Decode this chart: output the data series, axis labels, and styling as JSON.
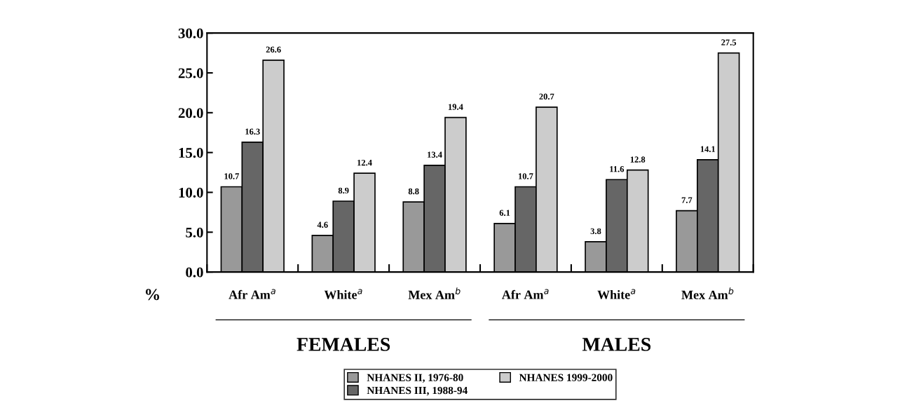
{
  "chart_data": {
    "type": "bar",
    "categories": [
      "Afr Am$^{a}$",
      "White$^{a}$",
      "Mex Am$^{b}$",
      "Afr Am$^{a}$",
      "White$^{a}$",
      "Mex Am$^{b}$"
    ],
    "series": [
      {
        "name": "NHANES II, 1976-80",
        "color": "#999999",
        "values": [
          10.7,
          4.6,
          8.8,
          6.1,
          3.8,
          7.7
        ]
      },
      {
        "name": "NHANES III, 1988-94",
        "color": "#666666",
        "values": [
          16.3,
          8.9,
          13.4,
          10.7,
          11.6,
          14.1
        ]
      },
      {
        "name": "NHANES 1999-2000",
        "color": "#cccccc",
        "values": [
          26.6,
          12.4,
          19.4,
          20.7,
          12.8,
          27.5
        ]
      }
    ],
    "ylabel": "%",
    "ylim": [
      0,
      30
    ],
    "yticks": [
      {
        "value": 0,
        "label": "0.0"
      },
      {
        "value": 5,
        "label": "5.0"
      },
      {
        "value": 10,
        "label": "10.0"
      },
      {
        "value": 15,
        "label": "15.0"
      },
      {
        "value": 20,
        "label": "20.0"
      },
      {
        "value": 25,
        "label": "25.0"
      },
      {
        "value": 30,
        "label": "30.0"
      }
    ],
    "annotations": [
      "FEMALES",
      "MALES"
    ],
    "data_labels": true,
    "grid": false,
    "legend": "bottom"
  }
}
